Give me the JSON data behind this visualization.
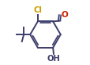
{
  "bg_color": "#ffffff",
  "bond_color": "#3d3d6b",
  "line_width": 1.4,
  "cl_label": "Cl",
  "oh_label": "OH",
  "o_label": "O",
  "cl_color": "#c8a000",
  "oh_color": "#3d3d6b",
  "o_color": "#cc2200"
}
